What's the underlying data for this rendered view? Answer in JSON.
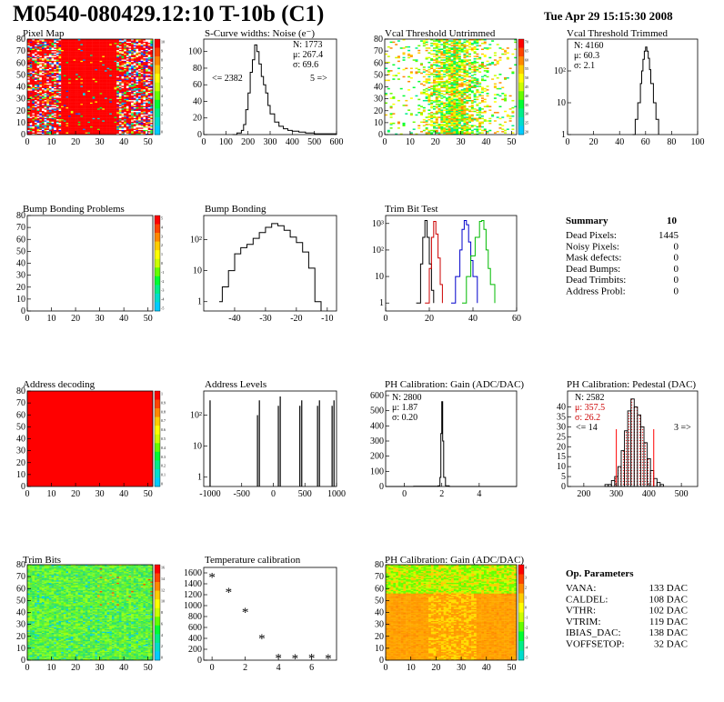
{
  "header": {
    "title": "M0540-080429.12:10 T-10b (C1)",
    "date": "Tue Apr 29 15:15:30 2008"
  },
  "colors": {
    "red": "#ff0000",
    "black": "#000000",
    "trim_red": "#cc0000",
    "trim_blue": "#0000cc",
    "trim_green": "#00bb00",
    "hatch": "#ee3333"
  },
  "panels": {
    "pixel_map": {
      "title": "Pixel Map",
      "x_ticks": [
        "0",
        "10",
        "20",
        "30",
        "40",
        "50"
      ],
      "y_ticks": [
        "0",
        "10",
        "20",
        "30",
        "40",
        "50",
        "60",
        "70",
        "80"
      ],
      "palette": [
        "10",
        "9",
        "8",
        "7",
        "6",
        "5",
        "4",
        "3",
        "2",
        "1",
        "0"
      ]
    },
    "scurve": {
      "title": "S-Curve widths: Noise (e⁻)",
      "stat_n": "N: 1773",
      "stat_mu": "μ: 267.4",
      "stat_sigma": "σ: 69.6",
      "underflow": "<= 2382",
      "overflow": "5 =>",
      "x_ticks": [
        "0",
        "100",
        "200",
        "300",
        "400",
        "500",
        "600"
      ],
      "y_ticks": [
        "0",
        "20",
        "40",
        "60",
        "80",
        "100"
      ]
    },
    "vcal_untrimmed": {
      "title": "Vcal Threshold Untrimmed",
      "x_ticks": [
        "0",
        "10",
        "20",
        "30",
        "40",
        "50"
      ],
      "y_ticks": [
        "0",
        "10",
        "20",
        "30",
        "40",
        "50",
        "60",
        "70",
        "80"
      ],
      "palette": [
        "70",
        "65",
        "60",
        "55",
        "50",
        "45",
        "40",
        "35",
        "30",
        "25",
        "20"
      ]
    },
    "vcal_trimmed": {
      "title": "Vcal Threshold Trimmed",
      "stat_n": "N: 4160",
      "stat_mu": "μ: 60.3",
      "stat_sigma": "σ:  2.1",
      "x_ticks": [
        "0",
        "20",
        "40",
        "60",
        "80",
        "100"
      ],
      "y_ticks": [
        "1",
        "10",
        "10²"
      ]
    },
    "bump_problems": {
      "title": "Bump Bonding Problems",
      "x_ticks": [
        "0",
        "10",
        "20",
        "30",
        "40",
        "50"
      ],
      "y_ticks": [
        "0",
        "10",
        "20",
        "30",
        "40",
        "50",
        "60",
        "70",
        "80"
      ],
      "palette": [
        "5",
        "4",
        "3",
        "2",
        "1",
        "0",
        "-1",
        "-2",
        "-3",
        "-4",
        "-5"
      ]
    },
    "bump_bonding": {
      "title": "Bump Bonding",
      "x_ticks": [
        "-40",
        "-30",
        "-20",
        "-10"
      ],
      "y_ticks": [
        "1",
        "10",
        "10²"
      ]
    },
    "trim_bit": {
      "title": "Trim Bit Test",
      "x_ticks": [
        "0",
        "20",
        "40",
        "60"
      ],
      "y_ticks": [
        "1",
        "10",
        "10²",
        "10³"
      ]
    },
    "summary": {
      "title": "Summary",
      "value": "10",
      "rows": [
        {
          "label": "Dead Pixels:",
          "value": "1445"
        },
        {
          "label": "Noisy Pixels:",
          "value": "0"
        },
        {
          "label": "Mask defects:",
          "value": "0"
        },
        {
          "label": "Dead Bumps:",
          "value": "0"
        },
        {
          "label": "Dead Trimbits:",
          "value": "0"
        },
        {
          "label": "Address Probl:",
          "value": "0"
        }
      ]
    },
    "address_decoding": {
      "title": "Address decoding",
      "x_ticks": [
        "0",
        "10",
        "20",
        "30",
        "40",
        "50"
      ],
      "y_ticks": [
        "0",
        "10",
        "20",
        "30",
        "40",
        "50",
        "60",
        "70",
        "80"
      ],
      "palette": [
        "1",
        "0.9",
        "0.8",
        "0.7",
        "0.6",
        "0.5",
        "0.4",
        "0.3",
        "0.2",
        "0.1",
        "0"
      ]
    },
    "address_levels": {
      "title": "Address Levels",
      "x_ticks": [
        "-1000",
        "-500",
        "0",
        "500",
        "1000"
      ],
      "y_ticks": [
        "1",
        "10",
        "10²"
      ]
    },
    "ph_gain_hist": {
      "title": "PH Calibration: Gain (ADC/DAC)",
      "stat_n": "N: 2800",
      "stat_mu": "μ: 1.87",
      "stat_sigma": "σ: 0.20",
      "x_ticks": [
        "0",
        "2",
        "4"
      ],
      "y_ticks": [
        "0",
        "100",
        "200",
        "300",
        "400",
        "500",
        "600"
      ]
    },
    "ph_pedestal": {
      "title": "PH Calibration: Pedestal (DAC)",
      "stat_n": "N: 2582",
      "stat_mu": "μ: 357.5",
      "stat_sigma": "σ: 26.2",
      "underflow": "<= 14",
      "overflow": "3 =>",
      "x_ticks": [
        "200",
        "300",
        "400",
        "500"
      ],
      "y_ticks": [
        "0",
        "5",
        "10",
        "15",
        "20",
        "25",
        "30",
        "35",
        "40"
      ]
    },
    "trim_bits": {
      "title": "Trim Bits",
      "x_ticks": [
        "0",
        "10",
        "20",
        "30",
        "40",
        "50"
      ],
      "y_ticks": [
        "0",
        "10",
        "20",
        "30",
        "40",
        "50",
        "60",
        "70",
        "80"
      ],
      "palette": [
        "16",
        "14",
        "12",
        "10",
        "8",
        "6",
        "4",
        "2",
        "0"
      ]
    },
    "temperature": {
      "title": "Temperature calibration",
      "x_ticks": [
        "0",
        "2",
        "4",
        "6"
      ],
      "y_ticks": [
        "0",
        "200",
        "400",
        "600",
        "800",
        "1000",
        "1200",
        "1400",
        "1600"
      ]
    },
    "ph_gain_map": {
      "title": "PH Calibration: Gain (ADC/DAC)",
      "x_ticks": [
        "0",
        "10",
        "20",
        "30",
        "40",
        "50"
      ],
      "y_ticks": [
        "0",
        "10",
        "20",
        "30",
        "40",
        "50",
        "60",
        "70",
        "80"
      ],
      "palette": [
        "4",
        "3",
        "2",
        "1",
        "0",
        "-1",
        "-2",
        "-3",
        "-4",
        "-5"
      ]
    },
    "op_params": {
      "title": "Op. Parameters",
      "rows": [
        {
          "label": "VANA:",
          "value": "133 DAC"
        },
        {
          "label": "CALDEL:",
          "value": "108 DAC"
        },
        {
          "label": "VTHR:",
          "value": "102 DAC"
        },
        {
          "label": "VTRIM:",
          "value": "119 DAC"
        },
        {
          "label": "IBIAS_DAC:",
          "value": "138 DAC"
        },
        {
          "label": "VOFFSETOP:",
          "value": "32 DAC"
        }
      ]
    }
  },
  "chart_data": [
    {
      "type": "heatmap",
      "title": "Pixel Map",
      "xlim": [
        0,
        52
      ],
      "ylim": [
        0,
        80
      ],
      "zlim": [
        0,
        10
      ],
      "description": "mostly full (red) with scattered lower-count pixels concentrated at left and right edges"
    },
    {
      "type": "line",
      "title": "S-Curve widths: Noise (e⁻)",
      "xlim": [
        0,
        600
      ],
      "ylim": [
        0,
        115
      ],
      "x": [
        130,
        150,
        170,
        180,
        190,
        200,
        210,
        220,
        230,
        240,
        250,
        260,
        270,
        280,
        290,
        300,
        320,
        340,
        360,
        380,
        400,
        430,
        460,
        500,
        550,
        600
      ],
      "y": [
        0,
        2,
        5,
        12,
        30,
        50,
        75,
        90,
        108,
        100,
        85,
        70,
        60,
        50,
        35,
        25,
        15,
        10,
        7,
        5,
        4,
        3,
        2,
        1,
        1,
        0
      ]
    },
    {
      "type": "heatmap",
      "title": "Vcal Threshold Untrimmed",
      "xlim": [
        0,
        52
      ],
      "ylim": [
        0,
        80
      ],
      "zlim": [
        20,
        70
      ],
      "description": "broad band centred near columns 22-32"
    },
    {
      "type": "line",
      "title": "Vcal Threshold Trimmed",
      "log_y": true,
      "xlim": [
        0,
        100
      ],
      "ylim": [
        1,
        1000
      ],
      "x": [
        50,
        52,
        54,
        56,
        57,
        58,
        59,
        60,
        61,
        62,
        63,
        64,
        66,
        68,
        70
      ],
      "y": [
        1,
        3,
        10,
        40,
        100,
        230,
        420,
        560,
        420,
        250,
        110,
        40,
        10,
        3,
        1
      ]
    },
    {
      "type": "heatmap",
      "title": "Bump Bonding Problems",
      "xlim": [
        0,
        52
      ],
      "ylim": [
        0,
        80
      ],
      "zlim": [
        -5,
        5
      ],
      "description": "empty"
    },
    {
      "type": "line",
      "title": "Bump Bonding",
      "log_y": true,
      "xlim": [
        -50,
        -7
      ],
      "ylim": [
        0.5,
        600
      ],
      "x": [
        -45,
        -44,
        -42,
        -40,
        -38,
        -36,
        -34,
        -32,
        -30,
        -28,
        -26,
        -24,
        -22,
        -20,
        -18,
        -16,
        -14,
        -13,
        -12
      ],
      "y": [
        1,
        3,
        10,
        35,
        55,
        70,
        110,
        170,
        250,
        330,
        280,
        200,
        120,
        80,
        40,
        12,
        1,
        1,
        0.5
      ]
    },
    {
      "type": "line",
      "title": "Trim Bit Test",
      "log_y": true,
      "xlim": [
        0,
        60
      ],
      "ylim": [
        0.5,
        2000
      ],
      "series": [
        {
          "name": "",
          "color": "#000000",
          "x": [
            14,
            16,
            17,
            18,
            19,
            20,
            21,
            22
          ],
          "y": [
            1,
            30,
            300,
            1300,
            300,
            30,
            3,
            1
          ]
        },
        {
          "name": "",
          "color": "#cc0000",
          "x": [
            18,
            20,
            21,
            22,
            23,
            24,
            25,
            26
          ],
          "y": [
            1,
            20,
            300,
            1200,
            400,
            50,
            5,
            1
          ]
        },
        {
          "name": "",
          "color": "#0000cc",
          "x": [
            30,
            32,
            34,
            35,
            36,
            37,
            38,
            39,
            40,
            42
          ],
          "y": [
            1,
            10,
            100,
            600,
            1300,
            900,
            200,
            40,
            10,
            1
          ]
        },
        {
          "name": "",
          "color": "#00bb00",
          "x": [
            35,
            37,
            39,
            41,
            43,
            44,
            45,
            46,
            47,
            48,
            50
          ],
          "y": [
            1,
            10,
            60,
            300,
            1200,
            1300,
            600,
            100,
            20,
            5,
            1
          ]
        }
      ]
    },
    {
      "type": "table",
      "title": "Summary",
      "rows": [
        [
          "Dead Pixels:",
          1445
        ],
        [
          "Noisy Pixels:",
          0
        ],
        [
          "Mask defects:",
          0
        ],
        [
          "Dead Bumps:",
          0
        ],
        [
          "Dead Trimbits:",
          0
        ],
        [
          "Address Probl:",
          0
        ]
      ]
    },
    {
      "type": "heatmap",
      "title": "Address decoding",
      "xlim": [
        0,
        52
      ],
      "ylim": [
        0,
        80
      ],
      "zlim": [
        0,
        1
      ],
      "description": "uniform, all red"
    },
    {
      "type": "bar",
      "title": "Address Levels",
      "log_y": true,
      "xlim": [
        -1100,
        1000
      ],
      "ylim": [
        0.5,
        600
      ],
      "x": [
        -1000,
        -250,
        -220,
        80,
        110,
        420,
        450,
        700,
        730,
        930,
        960
      ],
      "y": [
        300,
        100,
        300,
        200,
        400,
        200,
        300,
        200,
        300,
        200,
        300
      ]
    },
    {
      "type": "line",
      "title": "PH Calibration: Gain (ADC/DAC)",
      "xlim": [
        -1,
        6
      ],
      "ylim": [
        0,
        630
      ],
      "x": [
        -1,
        0.5,
        1.5,
        1.8,
        1.9,
        1.95,
        2.0,
        2.05,
        2.1,
        2.2,
        2.4,
        6
      ],
      "y": [
        0,
        1,
        2,
        5,
        60,
        350,
        560,
        300,
        60,
        5,
        0,
        0
      ]
    },
    {
      "type": "bar",
      "title": "PH Calibration: Pedestal (DAC)",
      "xlim": [
        150,
        550
      ],
      "ylim": [
        0,
        48
      ],
      "x": [
        270,
        280,
        290,
        300,
        310,
        320,
        330,
        340,
        350,
        360,
        370,
        380,
        390,
        400,
        410,
        420,
        430,
        440
      ],
      "y": [
        1,
        1,
        3,
        5,
        10,
        18,
        28,
        38,
        44,
        40,
        36,
        30,
        22,
        14,
        8,
        4,
        2,
        1
      ]
    },
    {
      "type": "heatmap",
      "title": "Trim Bits",
      "xlim": [
        0,
        52
      ],
      "ylim": [
        0,
        80
      ],
      "zlim": [
        0,
        16
      ],
      "description": "mostly green (8-10) with a few higher-value pixels upper right"
    },
    {
      "type": "scatter",
      "title": "Temperature calibration",
      "xlim": [
        -0.5,
        7.5
      ],
      "ylim": [
        0,
        1700
      ],
      "x": [
        0,
        1,
        2,
        3,
        4,
        5,
        6,
        7
      ],
      "y": [
        1540,
        1270,
        900,
        420,
        60,
        50,
        60,
        50
      ]
    },
    {
      "type": "heatmap",
      "title": "PH Calibration: Gain (ADC/DAC)",
      "xlim": [
        0,
        52
      ],
      "ylim": [
        0,
        80
      ],
      "zlim": [
        -5,
        4
      ],
      "description": "orange/yellow with green near top rows"
    },
    {
      "type": "table",
      "title": "Op. Parameters",
      "rows": [
        [
          "VANA:",
          "133 DAC"
        ],
        [
          "CALDEL:",
          "108 DAC"
        ],
        [
          "VTHR:",
          "102 DAC"
        ],
        [
          "VTRIM:",
          "119 DAC"
        ],
        [
          "IBIAS_DAC:",
          "138 DAC"
        ],
        [
          "VOFFSETOP:",
          "32 DAC"
        ]
      ]
    }
  ]
}
